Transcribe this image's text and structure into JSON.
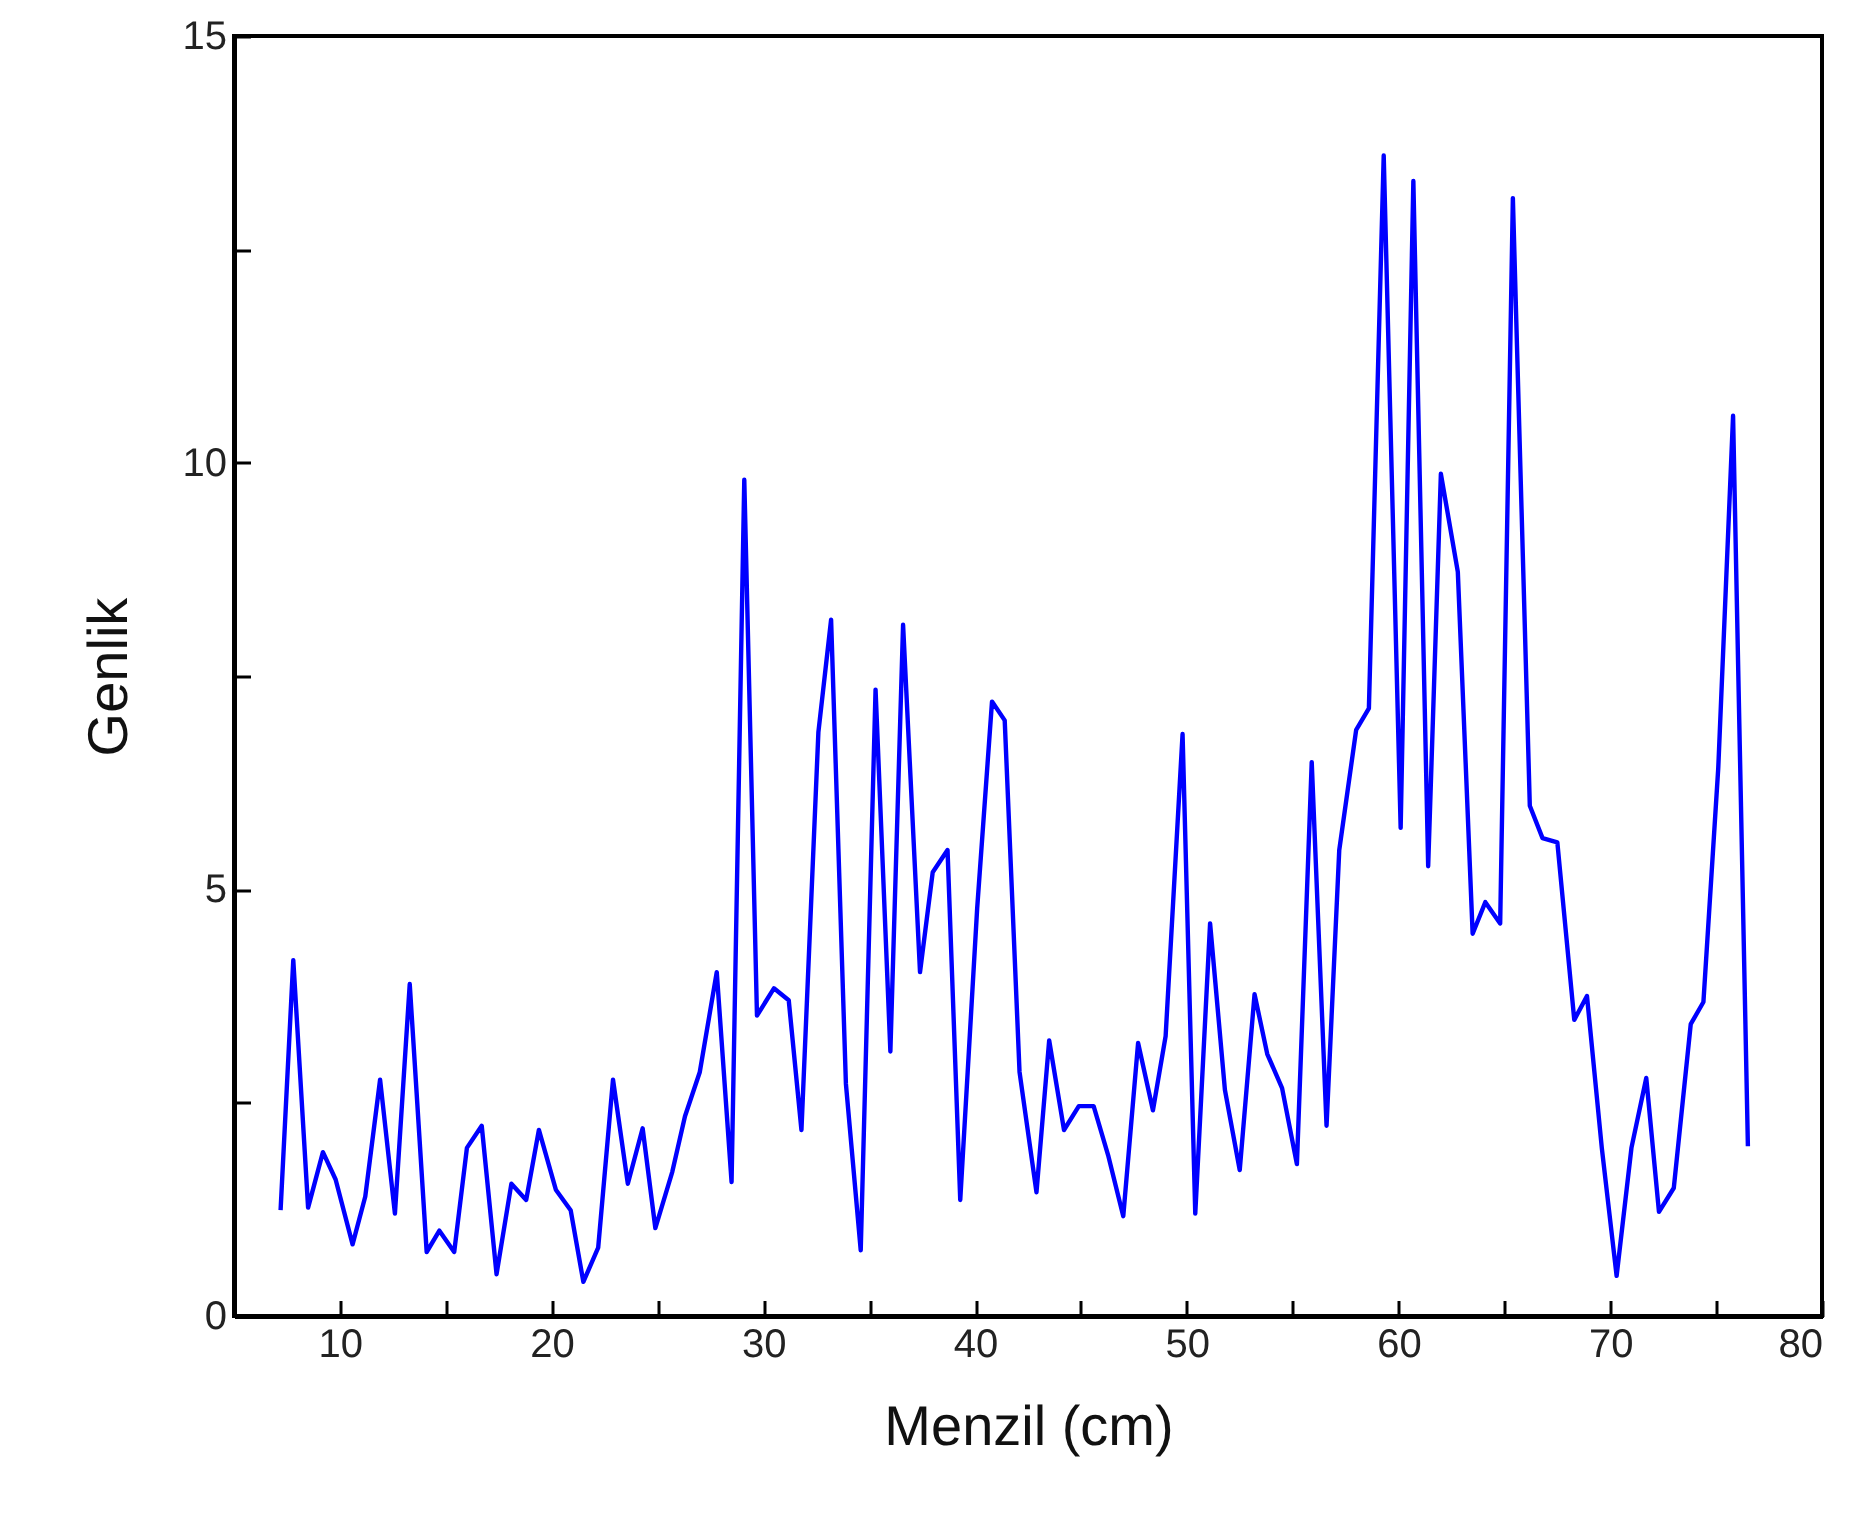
{
  "chart_data": {
    "type": "line",
    "xlabel": "Menzil (cm)",
    "ylabel": "Genlik",
    "xlim": [
      5,
      80
    ],
    "ylim": [
      0,
      15
    ],
    "xticks": [
      {
        "value": 5,
        "label": null
      },
      10,
      {
        "value": 15,
        "label": null
      },
      20,
      {
        "value": 25,
        "label": null
      },
      30,
      {
        "value": 35,
        "label": null
      },
      40,
      {
        "value": 45,
        "label": null
      },
      50,
      {
        "value": 55,
        "label": null
      },
      60,
      {
        "value": 65,
        "label": null
      },
      70,
      {
        "value": 75,
        "label": null
      },
      80
    ],
    "yticks": [
      0,
      {
        "value": 2.5,
        "label": null
      },
      5,
      {
        "value": 7.5,
        "label": null
      },
      10,
      {
        "value": 12.5,
        "label": null
      },
      15
    ],
    "grid": false,
    "marker": "none",
    "line_style": "solid",
    "series": [
      {
        "color": "#0000ff",
        "x": [
          7.2,
          7.8,
          8.5,
          9.2,
          9.8,
          10.6,
          11.2,
          11.9,
          12.6,
          13.3,
          14.1,
          14.7,
          15.4,
          16.0,
          16.7,
          17.4,
          18.1,
          18.8,
          19.4,
          20.2,
          20.9,
          21.5,
          22.2,
          22.9,
          23.6,
          24.3,
          24.9,
          25.7,
          26.3,
          27.0,
          27.8,
          28.5,
          29.1,
          29.7,
          30.5,
          31.2,
          31.8,
          32.6,
          33.2,
          33.9,
          34.6,
          35.3,
          36.0,
          36.6,
          37.4,
          38.0,
          38.7,
          39.3,
          40.1,
          40.8,
          41.4,
          42.1,
          42.9,
          43.5,
          44.2,
          44.9,
          45.6,
          46.3,
          47.0,
          47.7,
          48.4,
          49.0,
          49.8,
          50.4,
          51.1,
          51.8,
          52.5,
          53.2,
          53.8,
          54.5,
          55.2,
          55.9,
          56.6,
          57.2,
          58.0,
          58.6,
          59.3,
          60.1,
          60.7,
          61.4,
          62.0,
          62.8,
          63.5,
          64.1,
          64.8,
          65.4,
          66.2,
          66.8,
          67.5,
          68.3,
          68.9,
          69.6,
          70.3,
          71.0,
          71.7,
          72.3,
          73.0,
          73.8,
          74.4,
          75.1,
          75.8,
          76.5
        ],
        "values": [
          1.24,
          4.17,
          1.27,
          1.92,
          1.6,
          0.84,
          1.4,
          2.77,
          1.2,
          3.89,
          0.75,
          1.0,
          0.75,
          1.97,
          2.23,
          0.49,
          1.55,
          1.36,
          2.18,
          1.48,
          1.24,
          0.4,
          0.8,
          2.77,
          1.55,
          2.2,
          1.03,
          1.69,
          2.34,
          2.86,
          4.03,
          1.57,
          9.8,
          3.52,
          3.84,
          3.7,
          2.18,
          6.84,
          8.16,
          2.72,
          0.77,
          7.34,
          3.1,
          8.1,
          4.03,
          5.2,
          5.46,
          1.36,
          4.78,
          7.2,
          6.98,
          2.86,
          1.45,
          3.23,
          2.18,
          2.46,
          2.46,
          1.87,
          1.17,
          3.2,
          2.41,
          3.28,
          6.82,
          1.2,
          4.6,
          2.65,
          1.71,
          3.77,
          3.07,
          2.67,
          1.78,
          6.49,
          2.23,
          5.46,
          6.87,
          7.12,
          13.6,
          5.72,
          13.3,
          5.27,
          9.87,
          8.72,
          4.48,
          4.85,
          4.6,
          13.1,
          5.98,
          5.6,
          5.55,
          3.47,
          3.75,
          1.97,
          0.47,
          1.97,
          2.79,
          1.22,
          1.5,
          3.42,
          3.68,
          6.42,
          10.55,
          1.99
        ]
      }
    ]
  }
}
